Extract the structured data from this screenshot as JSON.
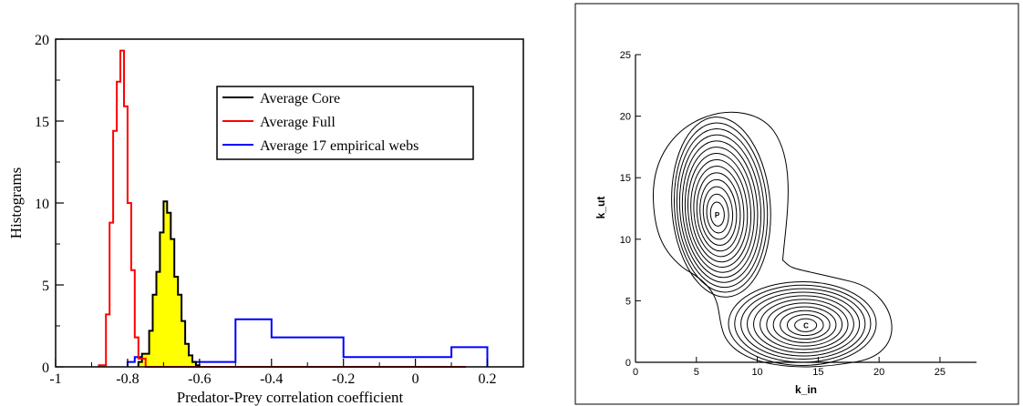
{
  "chart_data": [
    {
      "type": "histogram",
      "title": "",
      "xlabel": "Predator-Prey correlation coefficient",
      "ylabel": "Histograms",
      "xlim": [
        -1,
        0.3
      ],
      "ylim": [
        0,
        20
      ],
      "xticks": [
        {
          "v": -1,
          "label": "-1"
        },
        {
          "v": -0.8,
          "label": "-0.8"
        },
        {
          "v": -0.6,
          "label": "-0.6"
        },
        {
          "v": -0.4,
          "label": "-0.4"
        },
        {
          "v": -0.2,
          "label": "-0.2"
        },
        {
          "v": 0,
          "label": "0"
        },
        {
          "v": 0.2,
          "label": "0.2"
        }
      ],
      "yticks": [
        {
          "v": 0,
          "label": "0"
        },
        {
          "v": 5,
          "label": "5"
        },
        {
          "v": 10,
          "label": "10"
        },
        {
          "v": 15,
          "label": "15"
        },
        {
          "v": 20,
          "label": "20"
        }
      ],
      "grid": false,
      "legend_position": "top-right",
      "series": [
        {
          "name": "Average Core",
          "color": "#000000",
          "fill": "#ffff00",
          "edges": [
            -0.77,
            -0.76,
            -0.74,
            -0.73,
            -0.72,
            -0.71,
            -0.7,
            -0.69,
            -0.68,
            -0.67,
            -0.66,
            -0.65,
            -0.64,
            -0.63,
            -0.62,
            -0.61,
            -0.6,
            -0.59,
            -0.58
          ],
          "values": [
            0.3,
            0.8,
            2.2,
            4.4,
            5.8,
            8.2,
            10.1,
            9.4,
            7.8,
            5.5,
            4.4,
            2.8,
            1.4,
            0.7,
            0.3,
            0.1,
            0.0,
            0.0
          ]
        },
        {
          "name": "Average Full",
          "color": "#ff0000",
          "edges": [
            -0.88,
            -0.86,
            -0.85,
            -0.84,
            -0.83,
            -0.82,
            -0.81,
            -0.8,
            -0.79,
            -0.78,
            -0.77,
            -0.75
          ],
          "values": [
            0.1,
            3.2,
            8.8,
            14.4,
            17.4,
            19.3,
            15.9,
            10.0,
            5.9,
            1.8,
            0.5
          ],
          "tail_to": 0.14
        },
        {
          "name": "Average 17 empirical webs",
          "color": "#0000ff",
          "edges": [
            -0.8,
            -0.78,
            -0.76,
            -0.74,
            -0.72,
            -0.7,
            -0.68,
            -0.66,
            -0.64,
            -0.62,
            -0.6,
            -0.58,
            -0.5,
            -0.4,
            -0.2,
            0.1,
            0.2
          ],
          "values": [
            0.3,
            0.6,
            0.6,
            0.6,
            0.6,
            0.6,
            0.3,
            0.3,
            0.3,
            0.3,
            0.3,
            0.3,
            2.9,
            1.8,
            0.6,
            1.2
          ],
          "fill_under": "#ffffff"
        }
      ]
    },
    {
      "type": "contour",
      "title": "",
      "xlabel": "k_in",
      "ylabel": "k_ut",
      "xlim": [
        0,
        28
      ],
      "ylim": [
        0,
        25
      ],
      "xticks": [
        {
          "v": 0,
          "label": "0"
        },
        {
          "v": 5,
          "label": "5"
        },
        {
          "v": 10,
          "label": "10"
        },
        {
          "v": 15,
          "label": "15"
        },
        {
          "v": 20,
          "label": "20"
        },
        {
          "v": 25,
          "label": "25"
        }
      ],
      "yticks": [
        {
          "v": 0,
          "label": "0"
        },
        {
          "v": 5,
          "label": "5"
        },
        {
          "v": 10,
          "label": "10"
        },
        {
          "v": 15,
          "label": "15"
        },
        {
          "v": 20,
          "label": "20"
        },
        {
          "v": 25,
          "label": "25"
        }
      ],
      "grid": false,
      "peaks": [
        {
          "label": "P",
          "x": 6.7,
          "y": 12.0
        },
        {
          "label": "C",
          "x": 14.0,
          "y": 3.0
        }
      ]
    }
  ]
}
